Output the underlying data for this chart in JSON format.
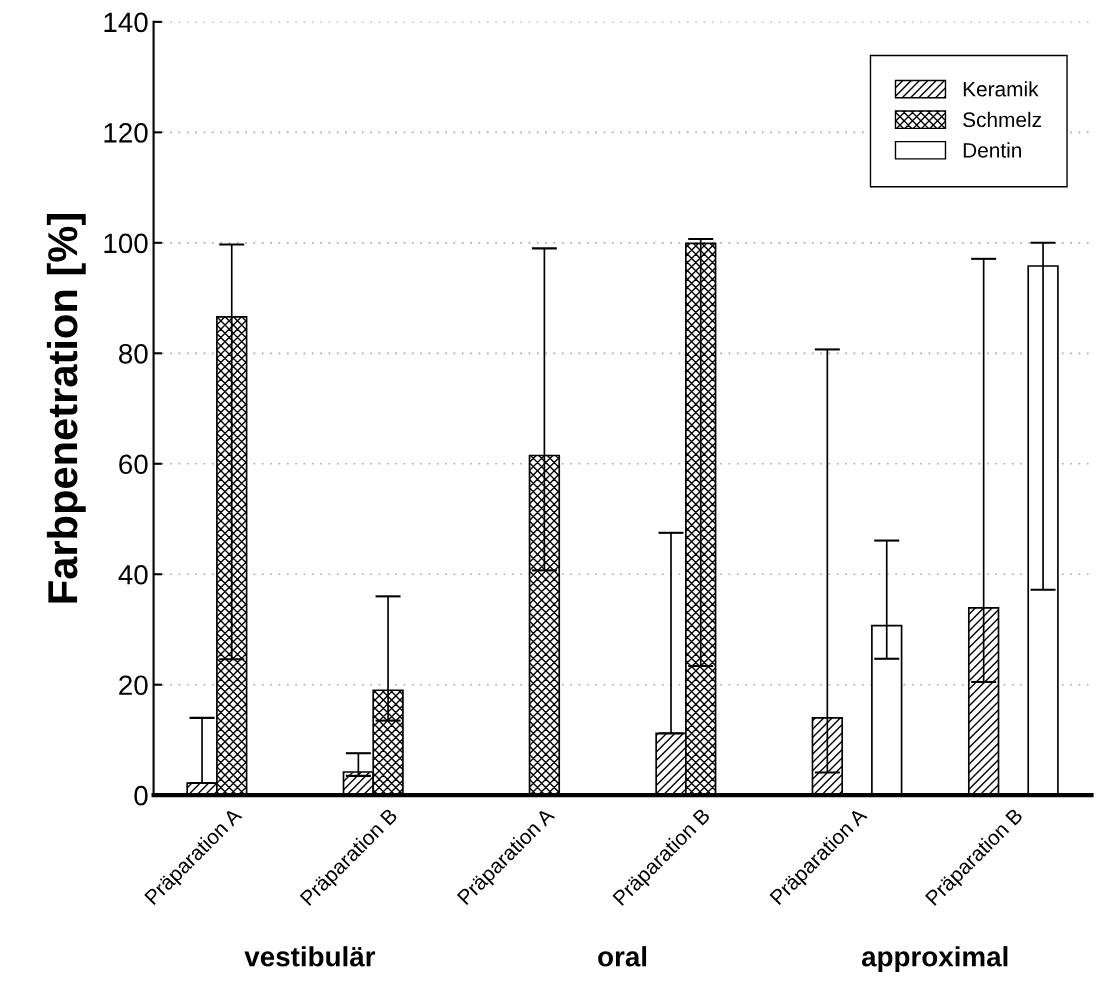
{
  "chart_data": {
    "type": "bar",
    "ylabel": "Farbpenetration [%]",
    "categories": [
      "Präparation A",
      "Präparation B",
      "Präparation A",
      "Präparation B",
      "Präparation A",
      "Präparation B"
    ],
    "series": [
      {
        "name": "Keramik",
        "color": "#000000",
        "values": [
          2.2,
          4.2,
          null,
          11.2,
          14.0,
          33.9
        ],
        "errors": [
          [
            2.2,
            14.0
          ],
          [
            3.5,
            7.6
          ],
          null,
          [
            11.2,
            47.5
          ],
          [
            4.1,
            80.7
          ],
          [
            20.5,
            97.1
          ]
        ]
      },
      {
        "name": "Schmelz",
        "color": "#000000",
        "values": [
          86.6,
          19.0,
          61.5,
          99.9,
          null,
          null
        ],
        "errors": [
          [
            24.6,
            99.7
          ],
          [
            13.5,
            36.0
          ],
          [
            40.7,
            99.0
          ],
          [
            23.4,
            100.7
          ],
          null,
          null
        ]
      },
      {
        "name": "Dentin",
        "color": "#ffffff",
        "values": [
          null,
          null,
          null,
          null,
          30.7,
          95.8
        ],
        "errors": [
          null,
          null,
          null,
          null,
          [
            24.7,
            46.1
          ],
          [
            37.2,
            100.0
          ]
        ]
      }
    ],
    "ylim": [
      0,
      140
    ],
    "yticks": [
      0,
      20,
      40,
      60,
      80,
      100,
      120,
      140
    ],
    "grid": "y",
    "legend": "top right",
    "annotations": [
      "vestibulär",
      "oral",
      "approximal"
    ]
  }
}
